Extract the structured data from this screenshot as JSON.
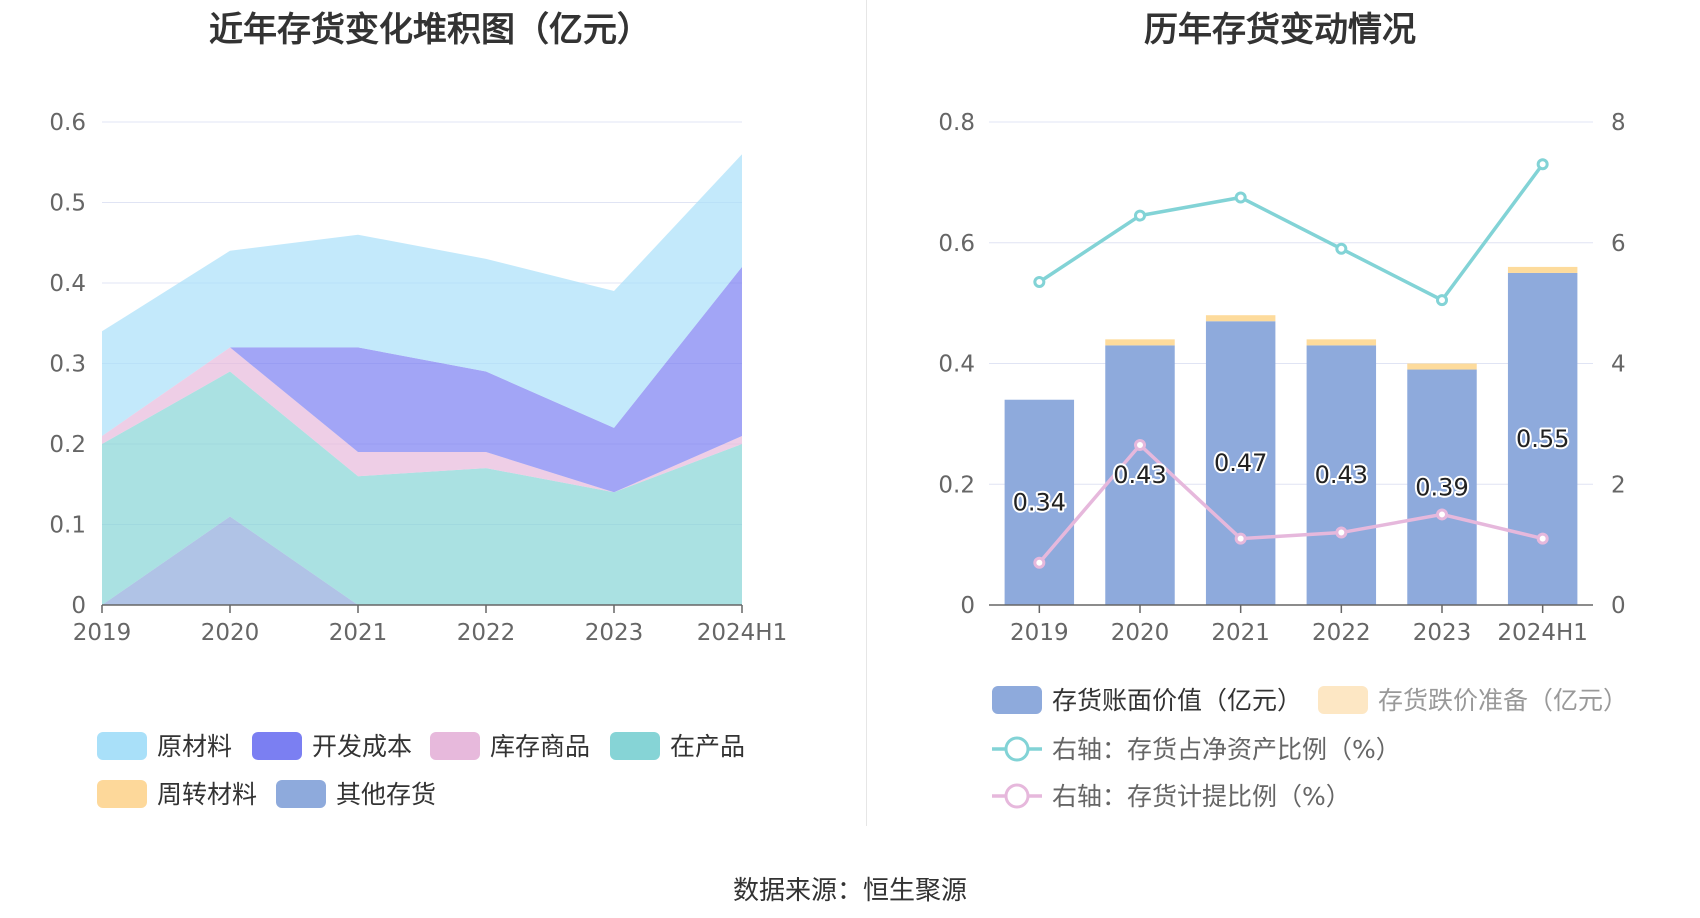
{
  "source_prefix": "数据来源：",
  "source_name": "恒生聚源",
  "chart_data": [
    {
      "type": "area",
      "title": "近年存货变化堆积图（亿元）",
      "categories": [
        "2019",
        "2020",
        "2021",
        "2022",
        "2023",
        "2024H1"
      ],
      "ylim": [
        0,
        0.6
      ],
      "y_ticks": [
        "0",
        "0.1",
        "0.2",
        "0.3",
        "0.4",
        "0.5",
        "0.6"
      ],
      "stacked": true,
      "grid": true,
      "legend_position": "bottom",
      "series": [
        {
          "name": "其他存货",
          "color": "#8eaadc",
          "values": [
            0,
            0.11,
            0,
            0,
            0,
            0
          ]
        },
        {
          "name": "在产品",
          "color": "#86d4d6",
          "values": [
            0.2,
            0.18,
            0.16,
            0.17,
            0.14,
            0.2
          ]
        },
        {
          "name": "周转材料",
          "color": "#fdd89a",
          "values": [
            0,
            0,
            0,
            0,
            0,
            0
          ]
        },
        {
          "name": "库存商品",
          "color": "#e7b9dc",
          "values": [
            0.01,
            0.03,
            0.03,
            0.02,
            0,
            0.01
          ]
        },
        {
          "name": "开发成本",
          "color": "#7b7ff2",
          "values": [
            0,
            0,
            0.13,
            0.1,
            0.08,
            0.21
          ]
        },
        {
          "name": "原材料",
          "color": "#a9e0f9",
          "values": [
            0.13,
            0.12,
            0.14,
            0.14,
            0.17,
            0.14
          ]
        }
      ],
      "legend_order": [
        "原材料",
        "开发成本",
        "库存商品",
        "在产品",
        "周转材料",
        "其他存货"
      ]
    },
    {
      "type": "bar",
      "title": "历年存货变动情况",
      "categories": [
        "2019",
        "2020",
        "2021",
        "2022",
        "2023",
        "2024H1"
      ],
      "ylim": [
        0,
        0.8
      ],
      "y_ticks": [
        "0",
        "0.2",
        "0.4",
        "0.6",
        "0.8"
      ],
      "y2lim": [
        0,
        8
      ],
      "y2_ticks": [
        "0",
        "2",
        "4",
        "6",
        "8"
      ],
      "grid": true,
      "legend_position": "bottom",
      "bars": [
        {
          "name": "存货账面价值（亿元）",
          "color": "#8eaadc",
          "values": [
            0.34,
            0.43,
            0.47,
            0.43,
            0.39,
            0.55
          ],
          "labels": [
            "0.34",
            "0.43",
            "0.47",
            "0.43",
            "0.39",
            "0.55"
          ]
        },
        {
          "name": "存货跌价准备（亿元）",
          "color": "#fddb9c",
          "values": [
            0,
            0.01,
            0.01,
            0.01,
            0.01,
            0.01
          ]
        }
      ],
      "lines": [
        {
          "name": "右轴：存货占净资产比例（%）",
          "color": "#82d3d6",
          "axis": "right",
          "values": [
            5.35,
            6.45,
            6.75,
            5.9,
            5.05,
            7.3
          ]
        },
        {
          "name": "右轴：存货计提比例（%）",
          "color": "#e6b8dc",
          "axis": "right",
          "values": [
            0.7,
            2.65,
            1.1,
            1.2,
            1.5,
            1.1
          ]
        }
      ]
    }
  ]
}
